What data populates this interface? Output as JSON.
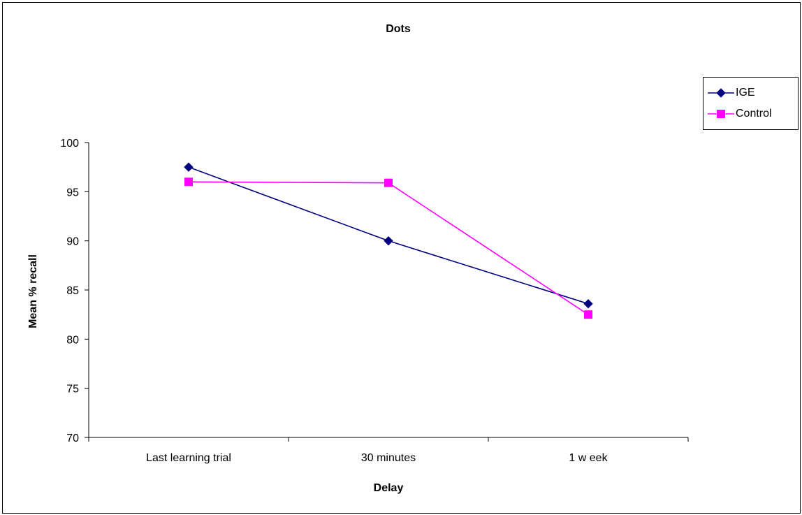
{
  "chart_data": {
    "type": "line",
    "title": "Dots",
    "xlabel": "Delay",
    "ylabel": "Mean % recall",
    "categories": [
      "Last learning trial",
      "30 minutes",
      "1 w eek"
    ],
    "ylim": [
      70,
      100
    ],
    "yticks": [
      "70",
      "75",
      "80",
      "85",
      "90",
      "95",
      "100"
    ],
    "grid": false,
    "legend_position": "top-right",
    "series": [
      {
        "name": "IGE",
        "values": [
          97.5,
          90.0,
          83.6
        ],
        "color": "#000080",
        "marker": "diamond"
      },
      {
        "name": "Control",
        "values": [
          96.0,
          95.9,
          82.5
        ],
        "color": "#FF00FF",
        "marker": "square"
      }
    ]
  }
}
